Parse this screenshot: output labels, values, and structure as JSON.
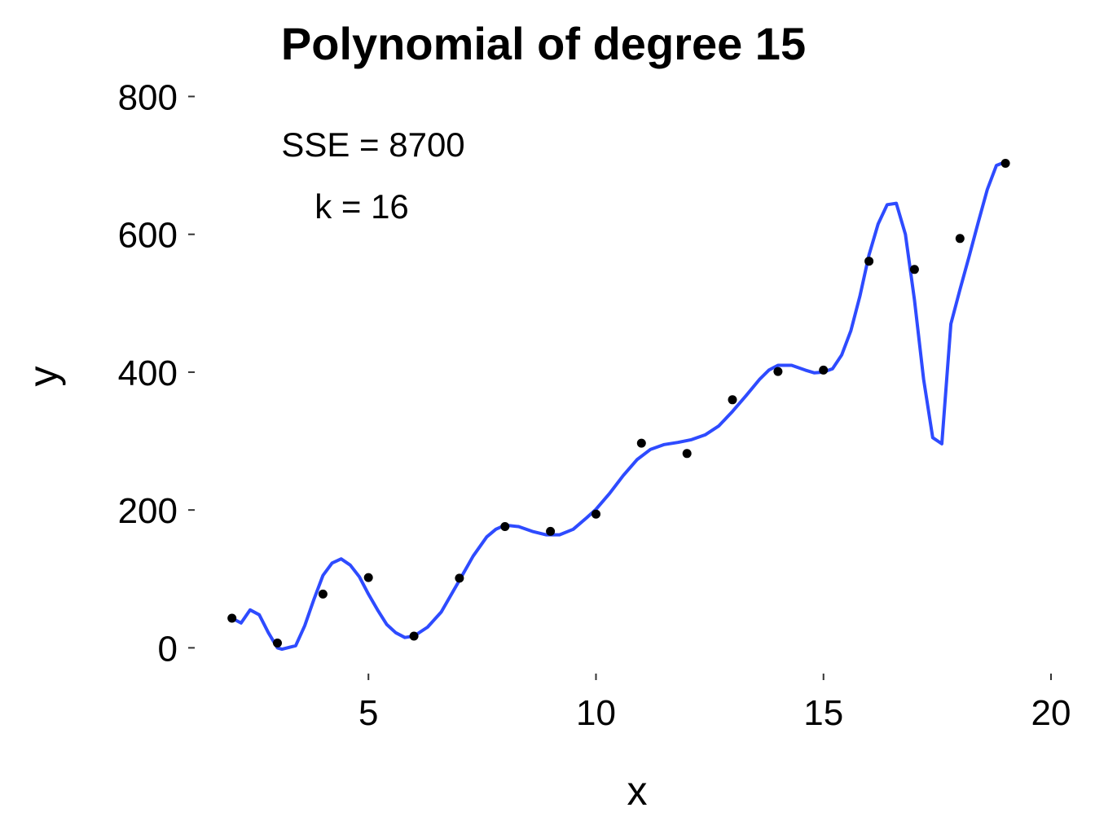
{
  "chart_data": {
    "type": "scatter",
    "title": "Polynomial of degree 15",
    "xlabel": "x",
    "ylabel": "y",
    "xlim": [
      1.2,
      20
    ],
    "ylim": [
      -35,
      810
    ],
    "xticks": [
      5,
      10,
      15,
      20
    ],
    "yticks": [
      0,
      200,
      400,
      600,
      800
    ],
    "grid": false,
    "annotations": [
      "SSE = 8700",
      "k = 16"
    ],
    "colors": {
      "points": "#000000",
      "fit": "#2e4bff"
    },
    "series": [
      {
        "type": "scatter",
        "x": [
          2,
          3,
          4,
          5,
          6,
          7,
          8,
          9,
          10,
          11,
          12,
          13,
          14,
          15,
          16,
          17,
          18,
          19
        ],
        "y": [
          43,
          7,
          78,
          102,
          17,
          101,
          176,
          169,
          194,
          297,
          282,
          360,
          401,
          403,
          561,
          549,
          594,
          703
        ]
      },
      {
        "type": "line",
        "x": [
          2,
          2.2,
          2.4,
          2.6,
          2.8,
          3,
          3.1,
          3.4,
          3.6,
          3.8,
          4,
          4.2,
          4.4,
          4.6,
          4.8,
          5,
          5.2,
          5.4,
          5.6,
          5.8,
          6,
          6.3,
          6.6,
          7,
          7.3,
          7.6,
          7.8,
          8,
          8.3,
          8.6,
          8.9,
          9.2,
          9.5,
          9.8,
          10,
          10.3,
          10.6,
          10.9,
          11.2,
          11.5,
          11.8,
          12.1,
          12.4,
          12.7,
          13,
          13.3,
          13.6,
          13.8,
          14,
          14.3,
          14.6,
          14.8,
          15,
          15.2,
          15.4,
          15.6,
          15.8,
          16,
          16.2,
          16.4,
          16.6,
          16.8,
          17,
          17.2,
          17.4,
          17.6,
          17.8,
          18,
          18.2,
          18.4,
          18.6,
          18.8,
          19
        ],
        "y": [
          43,
          36,
          55,
          48,
          22,
          0,
          -2,
          3,
          32,
          70,
          105,
          123,
          129,
          120,
          103,
          78,
          55,
          34,
          22,
          15,
          17,
          30,
          52,
          98,
          133,
          161,
          172,
          178,
          176,
          169,
          164,
          164,
          172,
          189,
          201,
          224,
          250,
          273,
          288,
          295,
          298,
          302,
          309,
          322,
          343,
          366,
          390,
          403,
          410,
          410,
          403,
          399,
          400,
          405,
          425,
          460,
          510,
          570,
          615,
          643,
          645,
          600,
          505,
          390,
          305,
          296,
          470,
          520,
          568,
          617,
          665,
          700,
          705
        ]
      }
    ]
  }
}
